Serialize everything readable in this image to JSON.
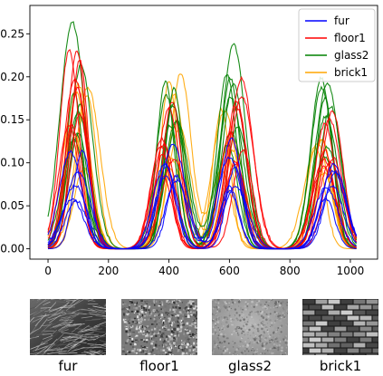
{
  "chart_data": {
    "type": "line",
    "title": "",
    "xlabel": "",
    "ylabel": "",
    "xlim": [
      -60,
      1090
    ],
    "ylim": [
      -0.012,
      0.283
    ],
    "x_ticks": [
      "0",
      "200",
      "400",
      "600",
      "800",
      "1000"
    ],
    "y_ticks": [
      "0.00",
      "0.05",
      "0.10",
      "0.15",
      "0.20",
      "0.25"
    ],
    "legend_position": "top-right",
    "series": [
      {
        "name": "fur",
        "color": "#0000ff",
        "curve_count": 6,
        "peaks": [
          {
            "x": 95,
            "y": 0.12
          },
          {
            "x": 405,
            "y": 0.13
          },
          {
            "x": 615,
            "y": 0.14
          },
          {
            "x": 930,
            "y": 0.12
          }
        ]
      },
      {
        "name": "floor1",
        "color": "#ff0000",
        "curve_count": 8,
        "peaks": [
          {
            "x": 85,
            "y": 0.24
          },
          {
            "x": 395,
            "y": 0.18
          },
          {
            "x": 625,
            "y": 0.21
          },
          {
            "x": 925,
            "y": 0.19
          }
        ]
      },
      {
        "name": "glass2",
        "color": "#008000",
        "curve_count": 8,
        "peaks": [
          {
            "x": 90,
            "y": 0.27
          },
          {
            "x": 410,
            "y": 0.24
          },
          {
            "x": 605,
            "y": 0.26
          },
          {
            "x": 920,
            "y": 0.21
          }
        ]
      },
      {
        "name": "brick1",
        "color": "#ffa500",
        "curve_count": 6,
        "peaks": [
          {
            "x": 110,
            "y": 0.2
          },
          {
            "x": 420,
            "y": 0.21
          },
          {
            "x": 595,
            "y": 0.17
          },
          {
            "x": 900,
            "y": 0.15
          }
        ]
      }
    ]
  },
  "textures": [
    {
      "label": "fur",
      "kind": "fur"
    },
    {
      "label": "floor1",
      "kind": "speckle"
    },
    {
      "label": "glass2",
      "kind": "glass"
    },
    {
      "label": "brick1",
      "kind": "brick"
    }
  ]
}
